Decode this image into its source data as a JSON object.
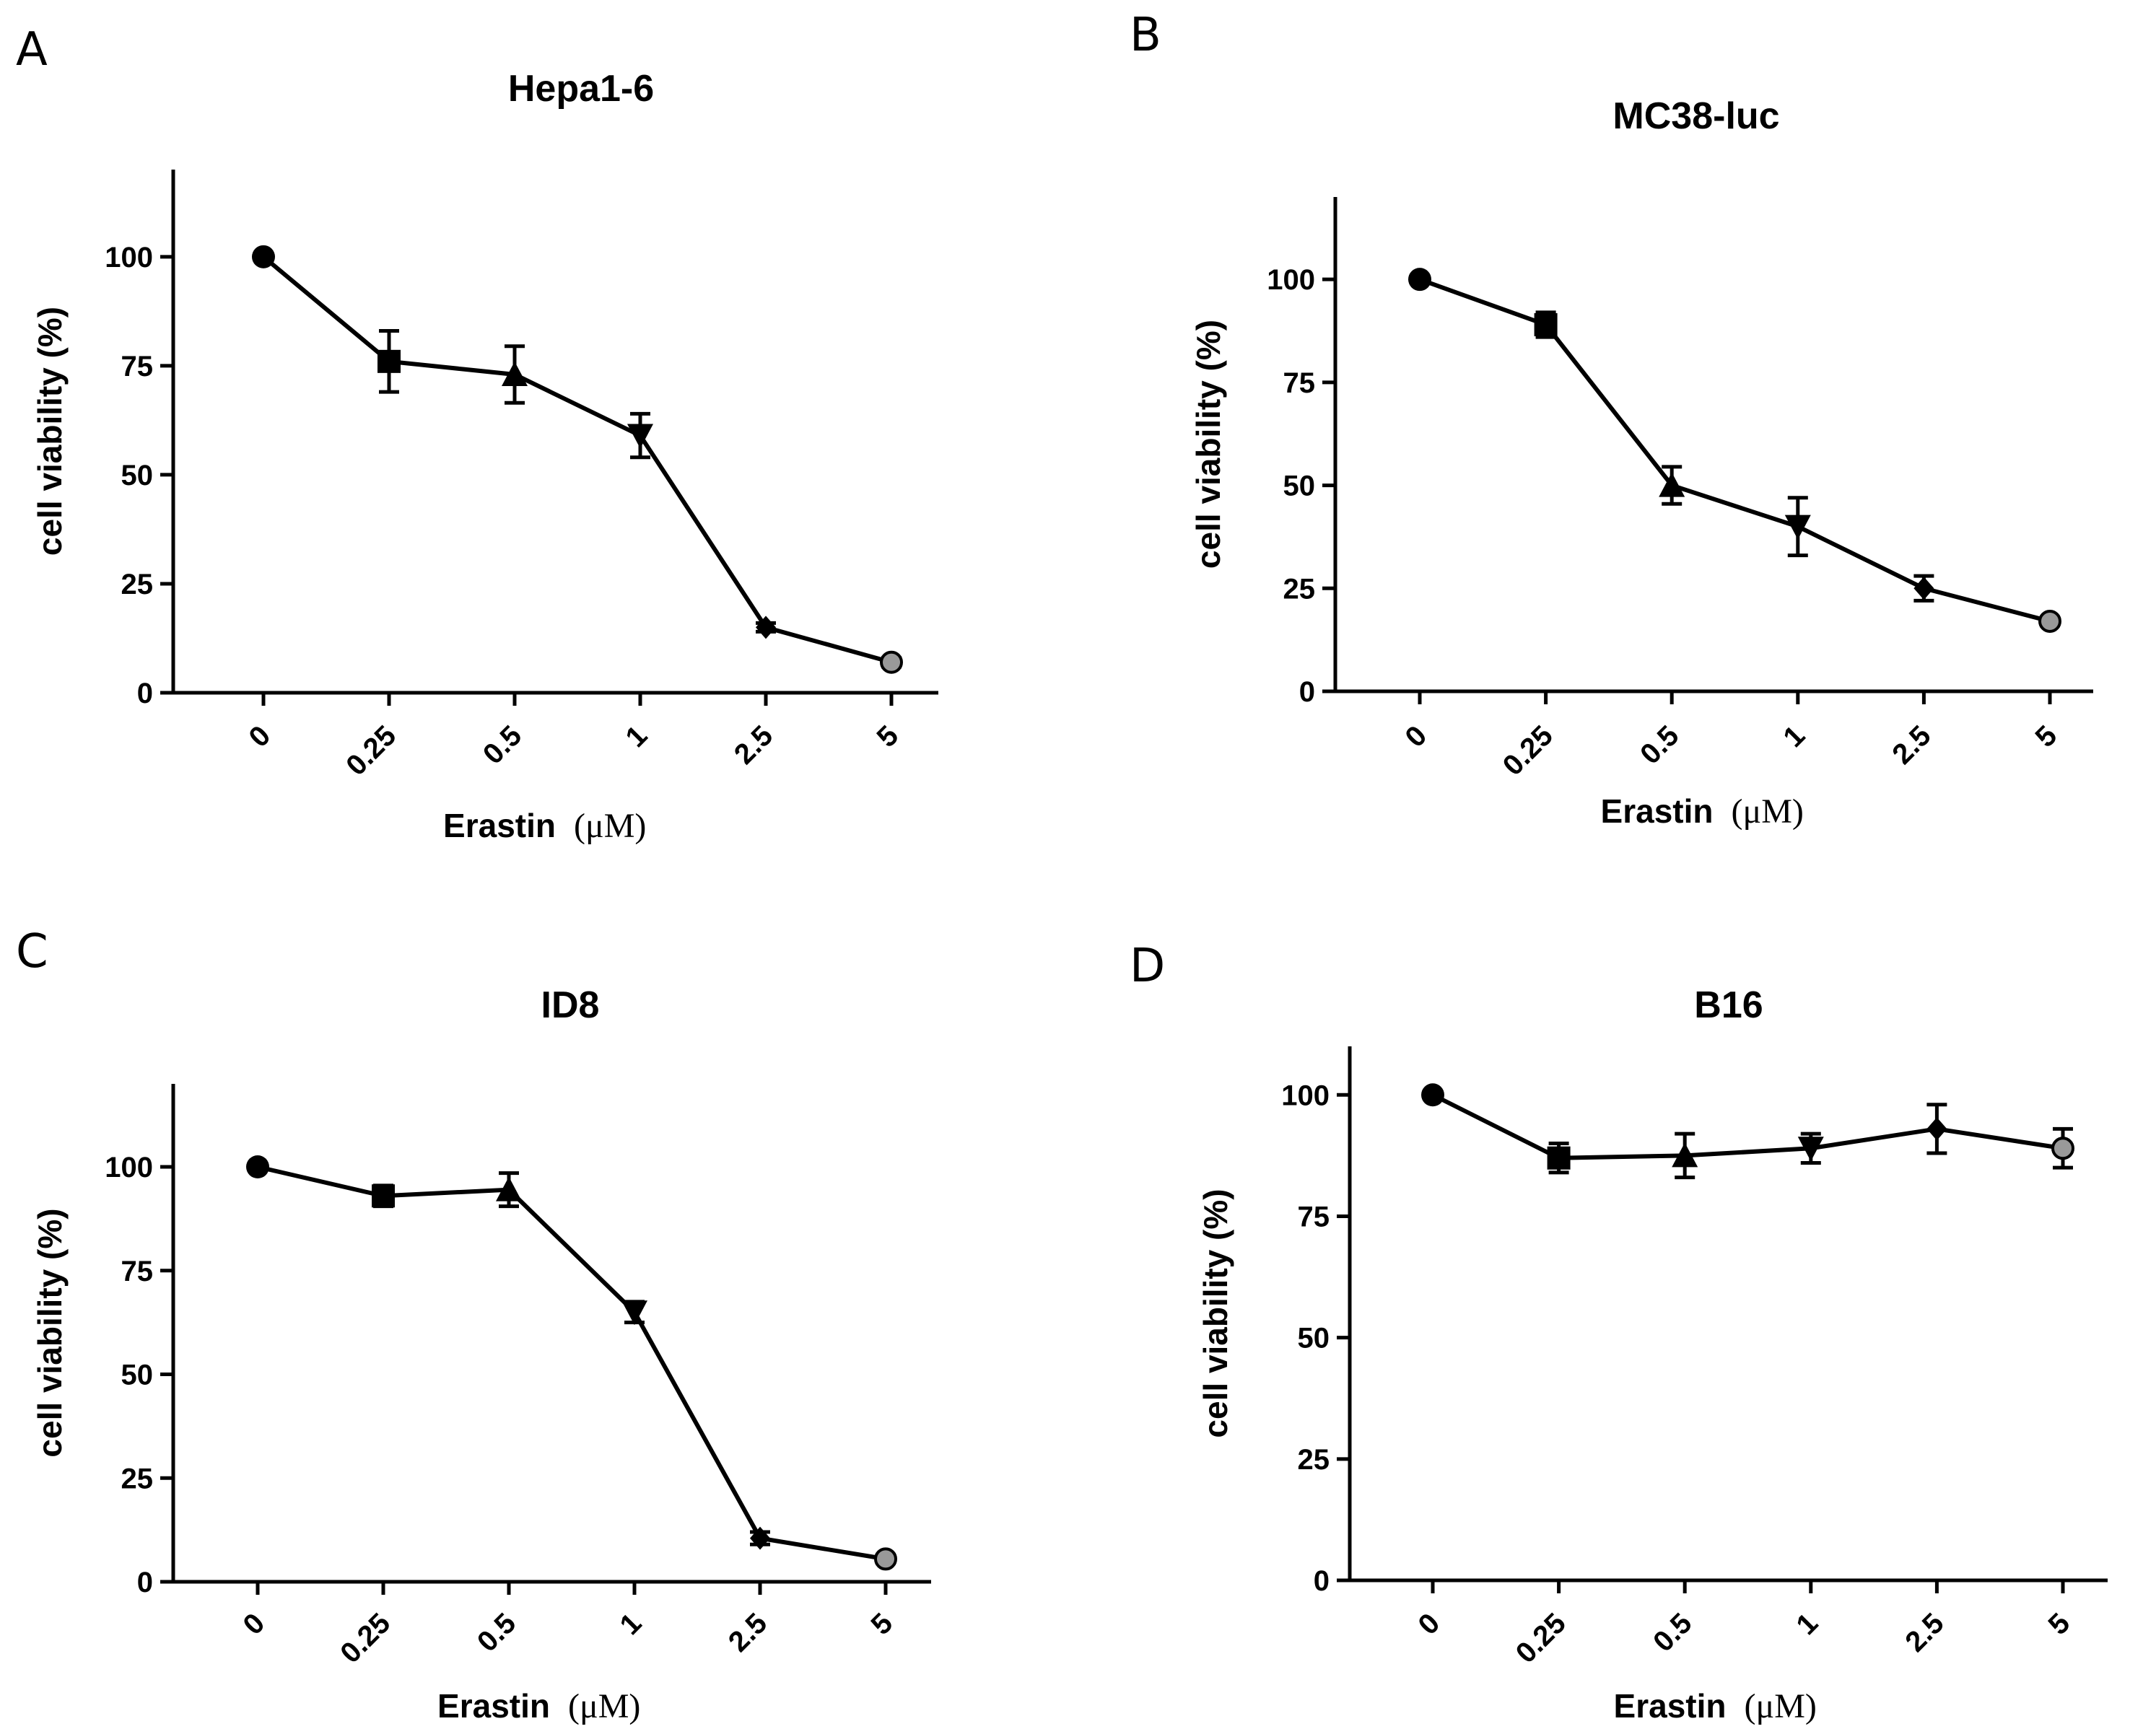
{
  "colors": {
    "ink": "#000000",
    "background": "#ffffff",
    "last_marker": "#999999"
  },
  "chart_data": [
    {
      "panel": "A",
      "type": "line",
      "title": "Hepa1-6",
      "xlabel": "Erastin",
      "xunit": "(μM)",
      "ylabel": "cell viability (%)",
      "categories": [
        "0",
        "0.25",
        "0.5",
        "1",
        "2.5",
        "5"
      ],
      "values": [
        100,
        76,
        73,
        59,
        15,
        7
      ],
      "errors": [
        0,
        7,
        6.5,
        5,
        1,
        1
      ],
      "markers": [
        "circle",
        "square",
        "triangle-up",
        "triangle-down",
        "diamond",
        "circle-open"
      ],
      "ylim": [
        0,
        120
      ],
      "yticks": [
        0,
        25,
        50,
        75,
        100
      ]
    },
    {
      "panel": "B",
      "type": "line",
      "title": "MC38-luc",
      "xlabel": "Erastin",
      "xunit": "(μM)",
      "ylabel": "cell viability (%)",
      "categories": [
        "0",
        "0.25",
        "0.5",
        "1",
        "2.5",
        "5"
      ],
      "values": [
        100,
        89,
        50,
        40,
        25,
        17
      ],
      "errors": [
        0,
        3,
        4.5,
        7,
        3,
        1
      ],
      "markers": [
        "circle",
        "square",
        "triangle-up",
        "triangle-down",
        "diamond",
        "circle-open"
      ],
      "ylim": [
        0,
        120
      ],
      "yticks": [
        0,
        25,
        50,
        75,
        100
      ]
    },
    {
      "panel": "C",
      "type": "line",
      "title": "ID8",
      "xlabel": "Erastin",
      "xunit": "(μM)",
      "ylabel": "cell viability (%)",
      "categories": [
        "0",
        "0.25",
        "0.5",
        "1",
        "2.5",
        "5"
      ],
      "values": [
        100,
        93,
        94.5,
        65,
        10.5,
        5.5
      ],
      "errors": [
        0,
        2.5,
        4,
        2.5,
        1.5,
        1
      ],
      "markers": [
        "circle",
        "square",
        "triangle-up",
        "triangle-down",
        "diamond",
        "circle-open"
      ],
      "ylim": [
        0,
        120
      ],
      "yticks": [
        0,
        25,
        50,
        75,
        100
      ]
    },
    {
      "panel": "D",
      "type": "line",
      "title": "B16",
      "xlabel": "Erastin",
      "xunit": "(μM)",
      "ylabel": "cell viability (%)",
      "categories": [
        "0",
        "0.25",
        "0.5",
        "1",
        "2.5",
        "5"
      ],
      "values": [
        100,
        87,
        87.5,
        89,
        93,
        89
      ],
      "errors": [
        0,
        3,
        4.5,
        3,
        5,
        4
      ],
      "markers": [
        "circle",
        "square",
        "triangle-up",
        "triangle-down",
        "diamond",
        "circle-open"
      ],
      "ylim": [
        0,
        110
      ],
      "yticks": [
        0,
        25,
        50,
        75,
        100
      ]
    }
  ]
}
